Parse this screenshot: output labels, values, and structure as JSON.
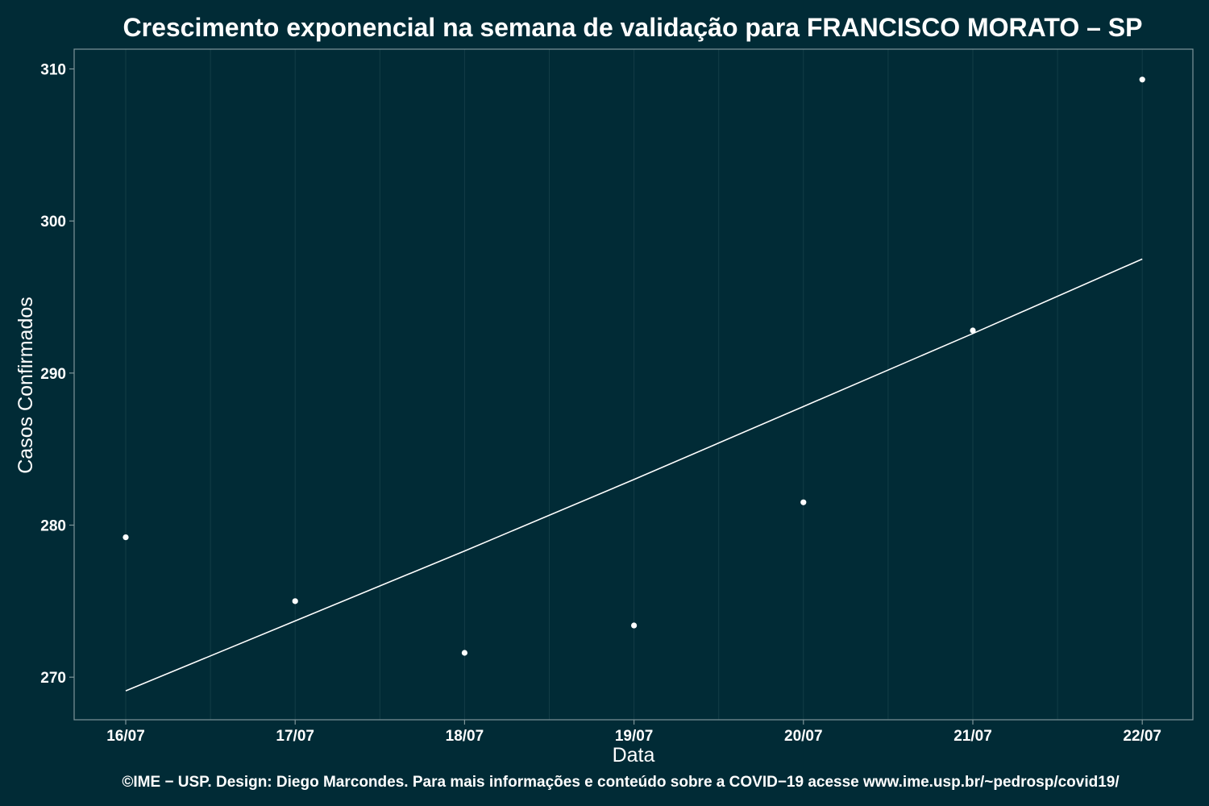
{
  "chart_data": {
    "type": "scatter",
    "title": "Crescimento exponencial na semana de validação para FRANCISCO MORATO – SP",
    "xlabel": "Data",
    "ylabel": "Casos Confirmados",
    "categories": [
      "16/07",
      "17/07",
      "18/07",
      "19/07",
      "20/07",
      "21/07",
      "22/07"
    ],
    "y_ticks": [
      270,
      280,
      290,
      300,
      310
    ],
    "ylim": [
      267.2,
      311.3
    ],
    "grid": true,
    "series": [
      {
        "type": "scatter",
        "values": [
          279.2,
          275.0,
          271.6,
          273.4,
          281.5,
          292.8,
          309.3
        ]
      },
      {
        "type": "line",
        "values": [
          269.1,
          273.7,
          278.3,
          283.0,
          287.8,
          292.6,
          297.5
        ]
      }
    ],
    "footer": "©IME − USP. Design: Diego Marcondes. Para mais informações e conteúdo sobre a COVID−19 acesse www.ime.usp.br/~pedrosp/covid19/"
  }
}
